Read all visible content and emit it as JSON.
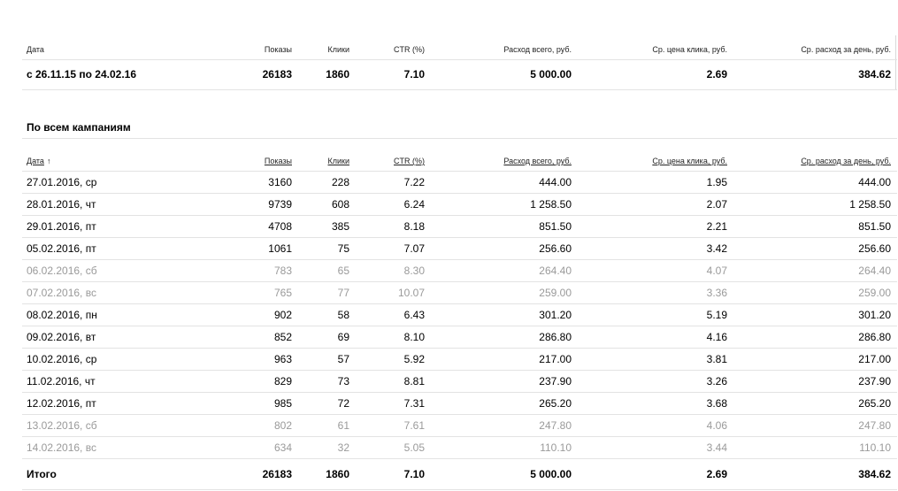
{
  "columns": [
    "Дата",
    "Показы",
    "Клики",
    "CTR (%)",
    "Расход всего, руб.",
    "Ср. цена клика, руб.",
    "Ср. расход за день, руб."
  ],
  "summary": {
    "period": "с 26.11.15 по 24.02.16",
    "shows": "26183",
    "clicks": "1860",
    "ctr": "7.10",
    "spend": "5 000.00",
    "avg_cpc": "2.69",
    "avg_daily": "384.62"
  },
  "section_title": "По всем кампаниям",
  "sort_indicator": "↑",
  "rows": [
    {
      "date": "27.01.2016, ср",
      "shows": "3160",
      "clicks": "228",
      "ctr": "7.22",
      "spend": "444.00",
      "avg_cpc": "1.95",
      "avg_daily": "444.00",
      "weekend": false
    },
    {
      "date": "28.01.2016, чт",
      "shows": "9739",
      "clicks": "608",
      "ctr": "6.24",
      "spend": "1 258.50",
      "avg_cpc": "2.07",
      "avg_daily": "1 258.50",
      "weekend": false
    },
    {
      "date": "29.01.2016, пт",
      "shows": "4708",
      "clicks": "385",
      "ctr": "8.18",
      "spend": "851.50",
      "avg_cpc": "2.21",
      "avg_daily": "851.50",
      "weekend": false
    },
    {
      "date": "05.02.2016, пт",
      "shows": "1061",
      "clicks": "75",
      "ctr": "7.07",
      "spend": "256.60",
      "avg_cpc": "3.42",
      "avg_daily": "256.60",
      "weekend": false
    },
    {
      "date": "06.02.2016, сб",
      "shows": "783",
      "clicks": "65",
      "ctr": "8.30",
      "spend": "264.40",
      "avg_cpc": "4.07",
      "avg_daily": "264.40",
      "weekend": true
    },
    {
      "date": "07.02.2016, вс",
      "shows": "765",
      "clicks": "77",
      "ctr": "10.07",
      "spend": "259.00",
      "avg_cpc": "3.36",
      "avg_daily": "259.00",
      "weekend": true
    },
    {
      "date": "08.02.2016, пн",
      "shows": "902",
      "clicks": "58",
      "ctr": "6.43",
      "spend": "301.20",
      "avg_cpc": "5.19",
      "avg_daily": "301.20",
      "weekend": false
    },
    {
      "date": "09.02.2016, вт",
      "shows": "852",
      "clicks": "69",
      "ctr": "8.10",
      "spend": "286.80",
      "avg_cpc": "4.16",
      "avg_daily": "286.80",
      "weekend": false
    },
    {
      "date": "10.02.2016, ср",
      "shows": "963",
      "clicks": "57",
      "ctr": "5.92",
      "spend": "217.00",
      "avg_cpc": "3.81",
      "avg_daily": "217.00",
      "weekend": false
    },
    {
      "date": "11.02.2016, чт",
      "shows": "829",
      "clicks": "73",
      "ctr": "8.81",
      "spend": "237.90",
      "avg_cpc": "3.26",
      "avg_daily": "237.90",
      "weekend": false
    },
    {
      "date": "12.02.2016, пт",
      "shows": "985",
      "clicks": "72",
      "ctr": "7.31",
      "spend": "265.20",
      "avg_cpc": "3.68",
      "avg_daily": "265.20",
      "weekend": false
    },
    {
      "date": "13.02.2016, сб",
      "shows": "802",
      "clicks": "61",
      "ctr": "7.61",
      "spend": "247.80",
      "avg_cpc": "4.06",
      "avg_daily": "247.80",
      "weekend": true
    },
    {
      "date": "14.02.2016, вс",
      "shows": "634",
      "clicks": "32",
      "ctr": "5.05",
      "spend": "110.10",
      "avg_cpc": "3.44",
      "avg_daily": "110.10",
      "weekend": true
    }
  ],
  "total": {
    "label": "Итого",
    "shows": "26183",
    "clicks": "1860",
    "ctr": "7.10",
    "spend": "5 000.00",
    "avg_cpc": "2.69",
    "avg_daily": "384.62"
  },
  "colors": {
    "text": "#000000",
    "weekend_text": "#9a9a9a",
    "rule": "#e3e3e3"
  }
}
